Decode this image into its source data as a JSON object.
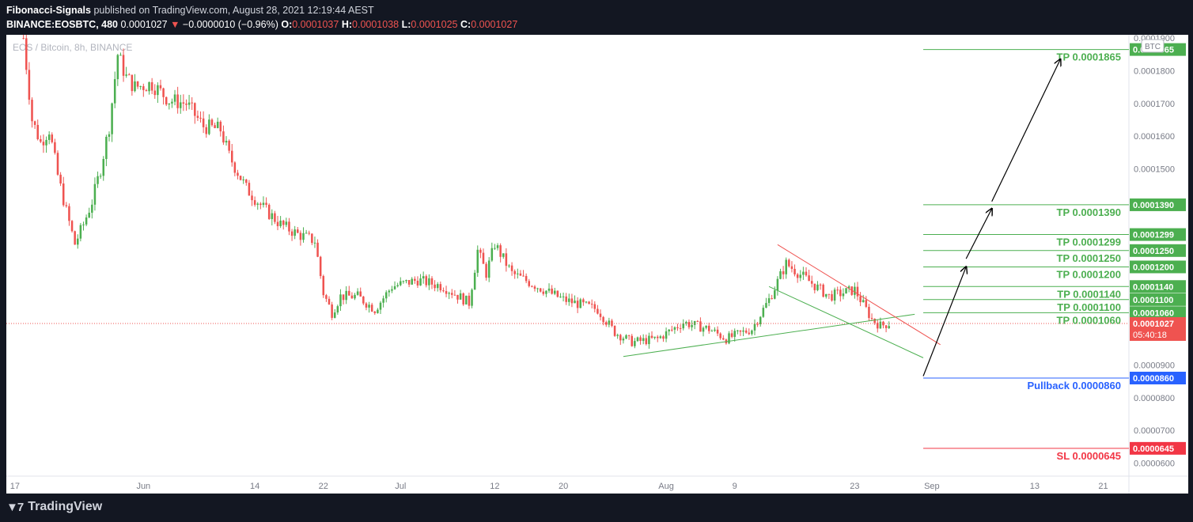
{
  "header": {
    "author": "Fibonacci-Signals",
    "published": "published on TradingView.com, August 28, 2021 12:19:44 AEST",
    "symbol": "BINANCE:EOSBTC, 480",
    "last": "0.0001027",
    "change_arrow": "▼",
    "change": "−0.0000010 (−0.96%)",
    "o_label": "O:",
    "o": "0.0001037",
    "h_label": "H:",
    "h": "0.0001038",
    "l_label": "L:",
    "l": "0.0001025",
    "c_label": "C:",
    "c": "0.0001027"
  },
  "footer": {
    "brand": "TradingView",
    "logo_icon": "tradingview-logo-icon"
  },
  "colors": {
    "up": "#26a69a",
    "up_candle": "#4caf50",
    "down": "#ef5350",
    "tp_green": "#4caf50",
    "pullback_blue": "#2962ff",
    "sl_red": "#f23645",
    "axis_text": "#787b86",
    "background_outer": "#131722"
  },
  "chart_data": {
    "type": "candlestick",
    "title": "EOS / Bitcoin, 8h, BINANCE",
    "currency_badge": "BTC",
    "ylim": [
      5.6e-05,
      0.000191
    ],
    "y_ticks": [
      "0.0001900",
      "0.0001800",
      "0.0001700",
      "0.0001600",
      "0.0001500",
      "0.0001400",
      "0.0001300",
      "0.0001200",
      "0.0001100",
      "0.0001000",
      "0.0000900",
      "0.0000800",
      "0.0000700",
      "0.0000600"
    ],
    "x_ticks": [
      "17",
      "Jun",
      "14",
      "22",
      "Jul",
      "12",
      "20",
      "Aug",
      "9",
      "23",
      "Sep",
      "13",
      "21"
    ],
    "x_range": [
      "2021-05-16",
      "2021-09-24"
    ],
    "last_price": {
      "value": "0.0001027",
      "countdown": "05:40:18"
    },
    "levels": [
      {
        "name": "TP 0.0001865",
        "value": 0.0001865,
        "badge": "0.0001865",
        "color": "#4caf50"
      },
      {
        "name": "TP 0.0001390",
        "value": 0.000139,
        "badge": "0.0001390",
        "color": "#4caf50"
      },
      {
        "name": "TP 0.0001299",
        "value": 0.0001299,
        "badge": "0.0001299",
        "color": "#4caf50"
      },
      {
        "name": "TP 0.0001250",
        "value": 0.000125,
        "badge": "0.0001250",
        "color": "#4caf50"
      },
      {
        "name": "TP 0.0001200",
        "value": 0.00012,
        "badge": "0.0001200",
        "color": "#4caf50"
      },
      {
        "name": "TP 0.0001140",
        "value": 0.000114,
        "badge": "0.0001140",
        "color": "#4caf50"
      },
      {
        "name": "TP 0.0001100",
        "value": 0.00011,
        "badge": "0.0001100",
        "color": "#4caf50"
      },
      {
        "name": "TP 0.0001060",
        "value": 0.000106,
        "badge": "0.0001060",
        "color": "#4caf50"
      },
      {
        "name": "Pullback 0.0000860",
        "value": 8.6e-05,
        "badge": "0.0000860",
        "color": "#2962ff"
      },
      {
        "name": "SL 0.0000645",
        "value": 6.45e-05,
        "badge": "0.0000645",
        "color": "#f23645"
      }
    ],
    "path_points": [
      [
        "2021-05-18",
        0.00019
      ],
      [
        "2021-05-19",
        0.000165
      ],
      [
        "2021-05-20",
        0.000158
      ],
      [
        "2021-05-21",
        0.000162
      ],
      [
        "2021-05-22",
        0.000148
      ],
      [
        "2021-05-23",
        0.000137
      ],
      [
        "2021-05-24",
        0.000127
      ],
      [
        "2021-05-25",
        0.000133
      ],
      [
        "2021-05-26",
        0.00014
      ],
      [
        "2021-05-27",
        0.00015
      ],
      [
        "2021-05-28",
        0.000163
      ],
      [
        "2021-05-29",
        0.000185
      ],
      [
        "2021-05-30",
        0.000178
      ],
      [
        "2021-05-31",
        0.000175
      ],
      [
        "2021-06-02",
        0.000176
      ],
      [
        "2021-06-04",
        0.000171
      ],
      [
        "2021-06-06",
        0.00017
      ],
      [
        "2021-06-08",
        0.000163
      ],
      [
        "2021-06-10",
        0.000162
      ],
      [
        "2021-06-11",
        0.000154
      ],
      [
        "2021-06-13",
        0.000144
      ],
      [
        "2021-06-15",
        0.000138
      ],
      [
        "2021-06-17",
        0.000133
      ],
      [
        "2021-06-19",
        0.00013
      ],
      [
        "2021-06-21",
        0.000128
      ],
      [
        "2021-06-22",
        0.000112
      ],
      [
        "2021-06-23",
        0.000106
      ],
      [
        "2021-06-24",
        0.000111
      ],
      [
        "2021-06-26",
        0.000111
      ],
      [
        "2021-06-28",
        0.000107
      ],
      [
        "2021-06-30",
        0.000114
      ],
      [
        "2021-07-03",
        0.000116
      ],
      [
        "2021-07-06",
        0.000114
      ],
      [
        "2021-07-09",
        0.000109
      ],
      [
        "2021-07-10",
        0.000125
      ],
      [
        "2021-07-11",
        0.000118
      ],
      [
        "2021-07-12",
        0.000127
      ],
      [
        "2021-07-14",
        0.000118
      ],
      [
        "2021-07-17",
        0.000114
      ],
      [
        "2021-07-20",
        0.00011
      ],
      [
        "2021-07-24",
        0.000107
      ],
      [
        "2021-07-26",
        0.0001
      ],
      [
        "2021-07-28",
        9.7e-05
      ],
      [
        "2021-07-31",
        9.8e-05
      ],
      [
        "2021-08-03",
        0.000103
      ],
      [
        "2021-08-06",
        0.000101
      ],
      [
        "2021-08-08",
        9.8e-05
      ],
      [
        "2021-08-11",
        0.000101
      ],
      [
        "2021-08-13",
        0.00011
      ],
      [
        "2021-08-15",
        0.000121
      ],
      [
        "2021-08-17",
        0.000117
      ],
      [
        "2021-08-20",
        0.000111
      ],
      [
        "2021-08-23",
        0.000113
      ],
      [
        "2021-08-25",
        0.000104
      ],
      [
        "2021-08-26",
        0.000102
      ],
      [
        "2021-08-27",
        0.0001027
      ]
    ]
  }
}
